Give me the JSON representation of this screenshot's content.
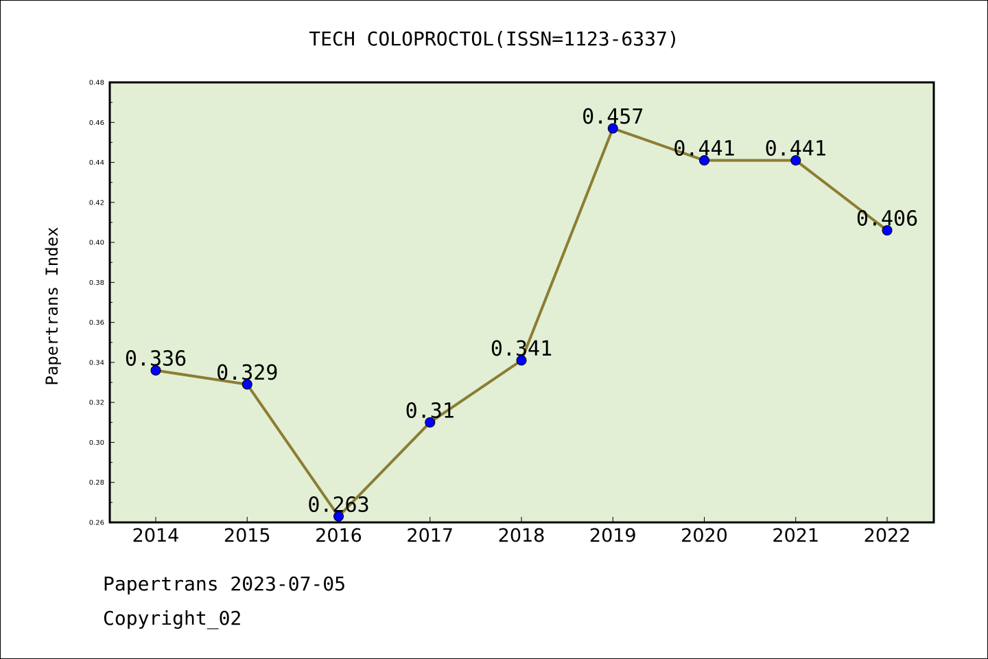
{
  "chart_data": {
    "type": "line",
    "title": "TECH COLOPROCTOL(ISSN=1123-6337)",
    "xlabel": "",
    "ylabel": "Papertrans Index",
    "categories": [
      "2014",
      "2015",
      "2016",
      "2017",
      "2018",
      "2019",
      "2020",
      "2021",
      "2022"
    ],
    "series": [
      {
        "values": [
          0.336,
          0.329,
          0.263,
          0.31,
          0.341,
          0.457,
          0.441,
          0.441,
          0.406
        ]
      }
    ],
    "data_labels": [
      "0.336",
      "0.329",
      "0.263",
      "0.31",
      "0.341",
      "0.457",
      "0.441",
      "0.441",
      "0.406"
    ],
    "ylim": [
      0.26,
      0.48
    ],
    "yticks": [
      "0.26",
      "0.28",
      "0.30",
      "0.32",
      "0.34",
      "0.36",
      "0.38",
      "0.40",
      "0.42",
      "0.44",
      "0.46",
      "0.48"
    ],
    "grid": false,
    "legend": "none",
    "colors": {
      "plot_background": "#e2efd5",
      "line": "#8b7d32",
      "marker": "#0000ff"
    }
  },
  "footer": {
    "source": "Papertrans 2023-07-05",
    "copyright": "Copyright_02"
  }
}
